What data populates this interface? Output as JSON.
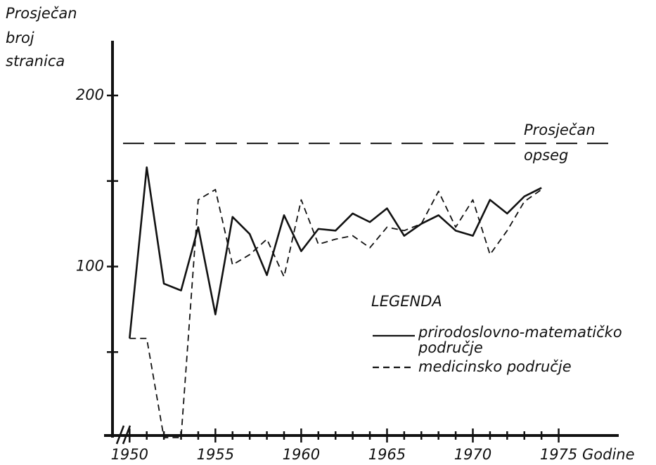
{
  "chart_data": {
    "type": "line",
    "ylabel_lines": [
      "Prosječan",
      "broj",
      "stranica"
    ],
    "xlabel": "Godine",
    "legend_title": "LEGENDA",
    "x": [
      1950,
      1951,
      1952,
      1953,
      1954,
      1955,
      1956,
      1957,
      1958,
      1959,
      1960,
      1961,
      1962,
      1963,
      1964,
      1965,
      1966,
      1967,
      1968,
      1969,
      1970,
      1971,
      1972,
      1973,
      1974
    ],
    "series": [
      {
        "name": "prirodoslovno-matematičko područje",
        "color": "#111111",
        "dash": "solid",
        "values": [
          58,
          158,
          90,
          86,
          123,
          72,
          129,
          119,
          95,
          130,
          109,
          122,
          121,
          131,
          126,
          134,
          118,
          125,
          130,
          121,
          118,
          139,
          131,
          141,
          146
        ]
      },
      {
        "name": "medicinsko područje",
        "color": "#111111",
        "dash": "dashed",
        "values": [
          58,
          58,
          0,
          0,
          139,
          145,
          101,
          107,
          116,
          94,
          139,
          113,
          116,
          118,
          111,
          123,
          121,
          125,
          144,
          123,
          139,
          107,
          121,
          138,
          145
        ]
      }
    ],
    "reference": {
      "value": 172,
      "label_lines": [
        "Prosječan",
        "opseg"
      ]
    },
    "xlim": [
      1948.8,
      1978.5
    ],
    "xticks": [
      1950,
      1955,
      1960,
      1965,
      1970,
      1975
    ],
    "xminorticks": [
      1951,
      1952,
      1953,
      1954,
      1956,
      1957,
      1958,
      1959,
      1961,
      1962,
      1963,
      1964,
      1966,
      1967,
      1968,
      1969,
      1971,
      1972,
      1973,
      1974
    ],
    "ylim": [
      0,
      232
    ],
    "yticks": [
      100,
      200
    ],
    "yminorticks": [
      50,
      150
    ]
  }
}
